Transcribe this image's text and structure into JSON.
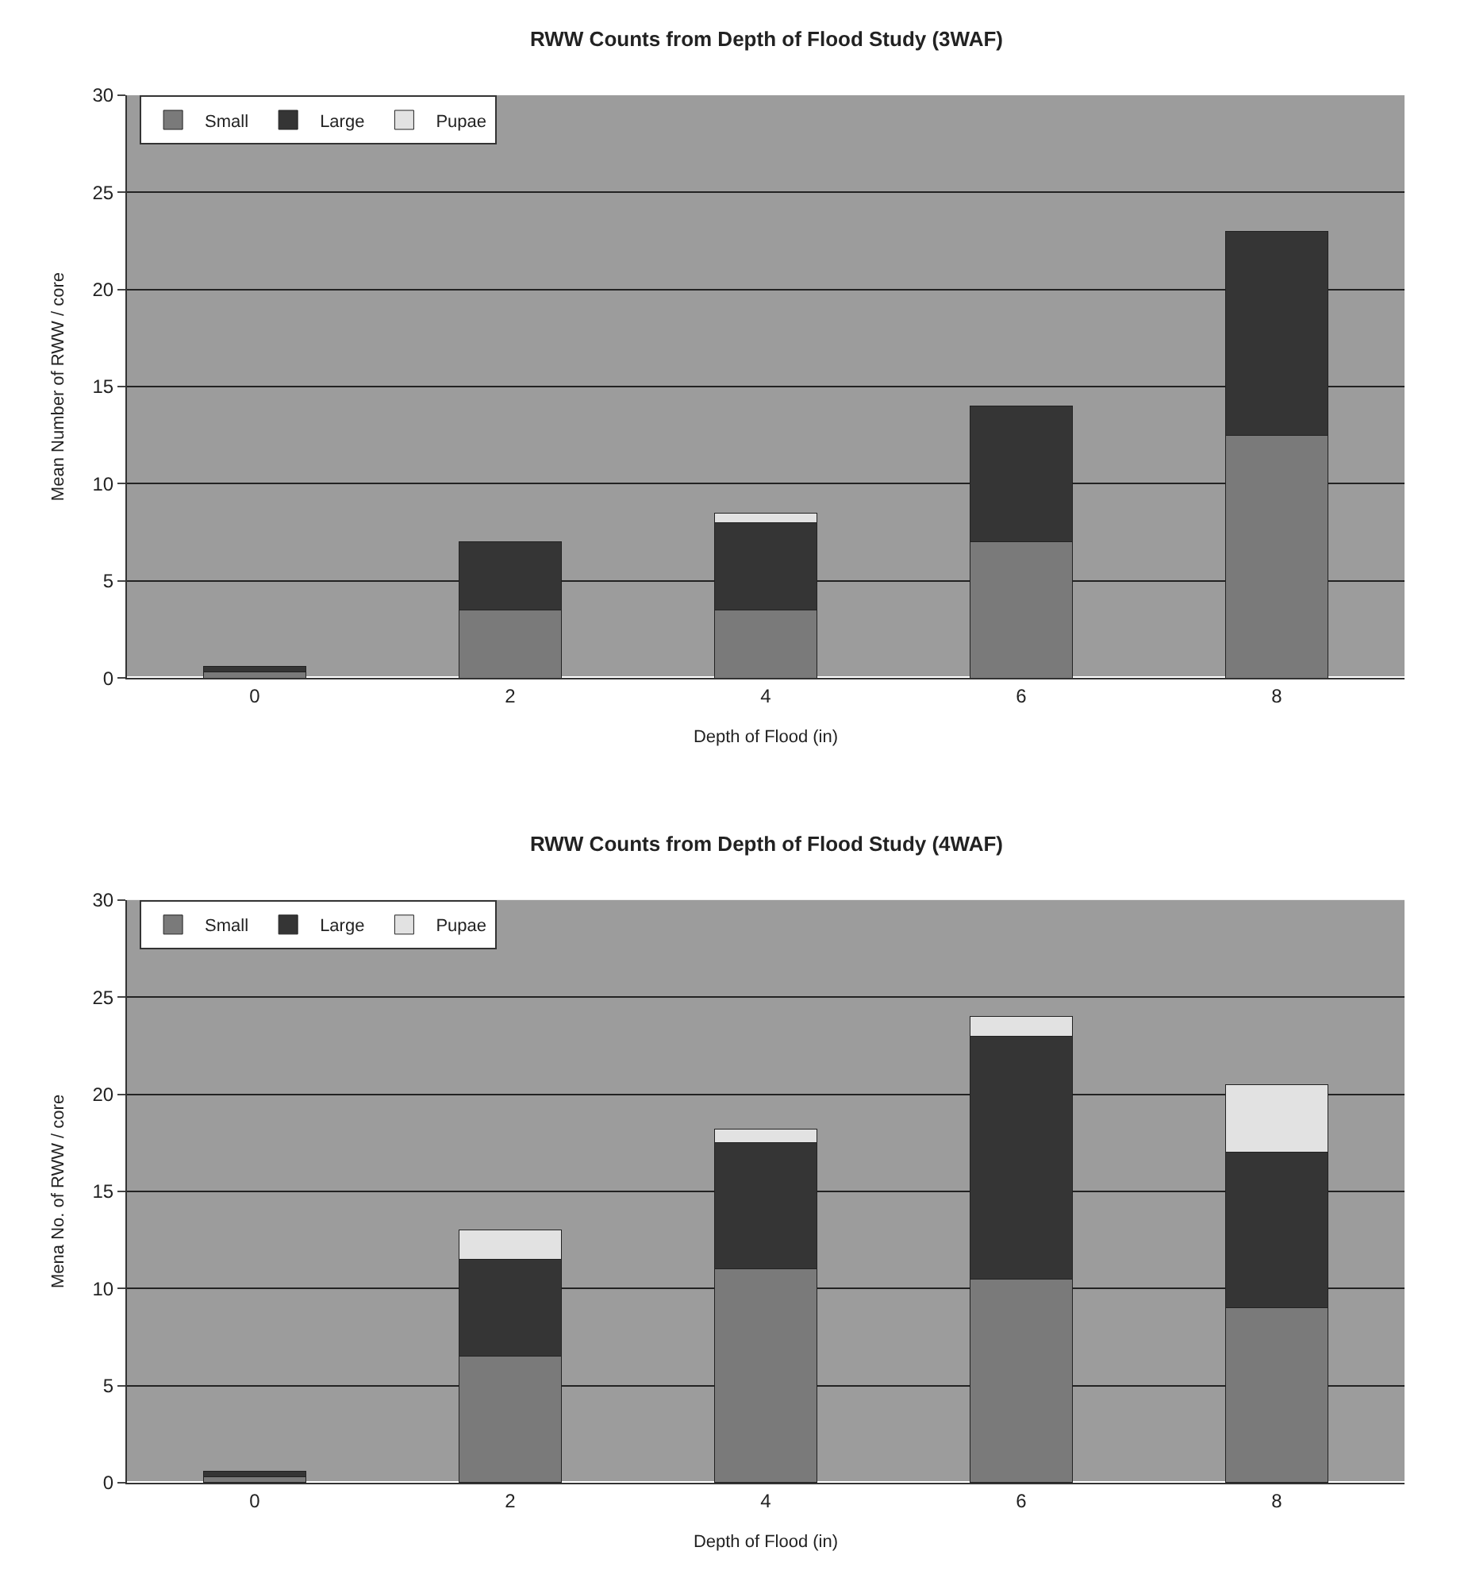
{
  "chart_data": [
    {
      "type": "bar",
      "title": "RWW Counts from Depth of Flood Study (3WAF)",
      "xlabel": "Depth of Flood (in)",
      "ylabel": "Mean Number of RWW / core",
      "categories": [
        "0",
        "2",
        "4",
        "6",
        "8"
      ],
      "stacked": true,
      "ylim": [
        0,
        30
      ],
      "yticks": [
        0,
        5,
        10,
        15,
        20,
        25,
        30
      ],
      "grid": "y",
      "legend": "top left",
      "series": [
        {
          "name": "Small",
          "color": "#7a7a7a",
          "values": [
            0.3,
            3.5,
            3.5,
            7,
            12.5
          ]
        },
        {
          "name": "Large",
          "color": "#353535",
          "values": [
            0.3,
            3.5,
            4.5,
            7,
            10.5
          ]
        },
        {
          "name": "Pupae",
          "color": "#e2e2e2",
          "values": [
            null,
            null,
            0.5,
            null,
            null
          ]
        }
      ]
    },
    {
      "type": "bar",
      "title": "RWW Counts from Depth of Flood Study (4WAF)",
      "xlabel": "Depth of Flood (in)",
      "ylabel": "Mena No. of RWW / core",
      "categories": [
        "0",
        "2",
        "4",
        "6",
        "8"
      ],
      "stacked": true,
      "ylim": [
        0,
        30
      ],
      "yticks": [
        0,
        5,
        10,
        15,
        20,
        25,
        30
      ],
      "grid": "y",
      "legend": "top left",
      "series": [
        {
          "name": "Small",
          "color": "#7a7a7a",
          "values": [
            0.3,
            6.5,
            11,
            10.5,
            9
          ]
        },
        {
          "name": "Large",
          "color": "#353535",
          "values": [
            0.3,
            5,
            6.5,
            12.5,
            8
          ]
        },
        {
          "name": "Pupae",
          "color": "#e2e2e2",
          "values": [
            null,
            1.5,
            0.7,
            1,
            3.5
          ]
        }
      ]
    }
  ]
}
